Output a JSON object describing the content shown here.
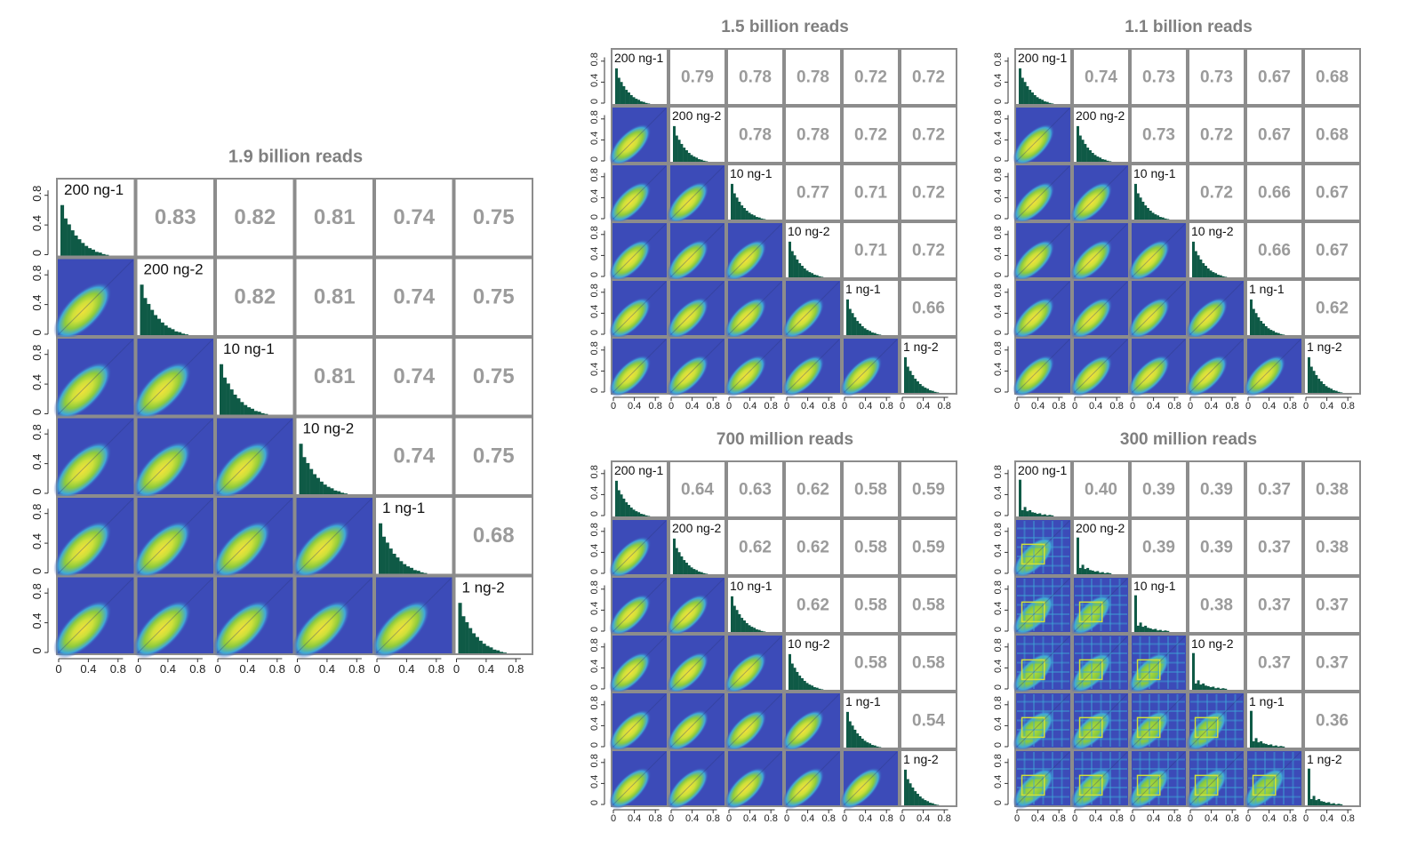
{
  "labels": [
    "200 ng-1",
    "200 ng-2",
    "10 ng-1",
    "10 ng-2",
    "1 ng-1",
    "1 ng-2"
  ],
  "axis_ticks": [
    "0",
    "0.4",
    "0.8"
  ],
  "colors": {
    "frame": "#8c8c8c",
    "title": "#7f7f7f",
    "corr_text": "#9b9b9b",
    "histogram": "#0f5a46",
    "density_bg": "#3c4bb8",
    "density_mid": "#3fa9d8",
    "density_core": "#8ecb3c",
    "density_peak": "#f2e23a"
  },
  "chart_data": [
    {
      "type": "scatter-matrix",
      "title": "1.9 billion reads",
      "correlations": [
        [
          null,
          0.83,
          0.82,
          0.81,
          0.74,
          0.75
        ],
        [
          null,
          null,
          0.82,
          0.81,
          0.74,
          0.75
        ],
        [
          null,
          null,
          null,
          0.81,
          0.74,
          0.75
        ],
        [
          null,
          null,
          null,
          null,
          0.74,
          0.75
        ],
        [
          null,
          null,
          null,
          null,
          null,
          0.68
        ],
        [
          null,
          null,
          null,
          null,
          null,
          null
        ]
      ],
      "hist_style": "smooth",
      "density_style": "smooth",
      "xlim": [
        0,
        1
      ],
      "ylim": [
        0,
        1
      ]
    },
    {
      "type": "scatter-matrix",
      "title": "1.5 billion reads",
      "correlations": [
        [
          null,
          0.79,
          0.78,
          0.78,
          0.72,
          0.72
        ],
        [
          null,
          null,
          0.78,
          0.78,
          0.72,
          0.72
        ],
        [
          null,
          null,
          null,
          0.77,
          0.71,
          0.72
        ],
        [
          null,
          null,
          null,
          null,
          0.71,
          0.72
        ],
        [
          null,
          null,
          null,
          null,
          null,
          0.66
        ],
        [
          null,
          null,
          null,
          null,
          null,
          null
        ]
      ],
      "hist_style": "smooth",
      "density_style": "smooth",
      "xlim": [
        0,
        1
      ],
      "ylim": [
        0,
        1
      ]
    },
    {
      "type": "scatter-matrix",
      "title": "1.1 billion reads",
      "correlations": [
        [
          null,
          0.74,
          0.73,
          0.73,
          0.67,
          0.68
        ],
        [
          null,
          null,
          0.73,
          0.72,
          0.67,
          0.68
        ],
        [
          null,
          null,
          null,
          0.72,
          0.66,
          0.67
        ],
        [
          null,
          null,
          null,
          null,
          0.66,
          0.67
        ],
        [
          null,
          null,
          null,
          null,
          null,
          0.62
        ],
        [
          null,
          null,
          null,
          null,
          null,
          null
        ]
      ],
      "hist_style": "smooth",
      "density_style": "smooth",
      "xlim": [
        0,
        1
      ],
      "ylim": [
        0,
        1
      ]
    },
    {
      "type": "scatter-matrix",
      "title": "700 million reads",
      "correlations": [
        [
          null,
          0.64,
          0.63,
          0.62,
          0.58,
          0.59
        ],
        [
          null,
          null,
          0.62,
          0.62,
          0.58,
          0.59
        ],
        [
          null,
          null,
          null,
          0.62,
          0.58,
          0.58
        ],
        [
          null,
          null,
          null,
          null,
          0.58,
          0.58
        ],
        [
          null,
          null,
          null,
          null,
          null,
          0.54
        ],
        [
          null,
          null,
          null,
          null,
          null,
          null
        ]
      ],
      "hist_style": "smooth",
      "density_style": "smooth",
      "xlim": [
        0,
        1
      ],
      "ylim": [
        0,
        1
      ]
    },
    {
      "type": "scatter-matrix",
      "title": "300 million reads",
      "correlations": [
        [
          null,
          0.4,
          0.39,
          0.39,
          0.37,
          0.38
        ],
        [
          null,
          null,
          0.39,
          0.39,
          0.37,
          0.38
        ],
        [
          null,
          null,
          null,
          0.38,
          0.37,
          0.37
        ],
        [
          null,
          null,
          null,
          null,
          0.37,
          0.37
        ],
        [
          null,
          null,
          null,
          null,
          null,
          0.36
        ],
        [
          null,
          null,
          null,
          null,
          null,
          null
        ]
      ],
      "hist_style": "sparse",
      "density_style": "grid",
      "xlim": [
        0,
        1
      ],
      "ylim": [
        0,
        1
      ]
    }
  ]
}
